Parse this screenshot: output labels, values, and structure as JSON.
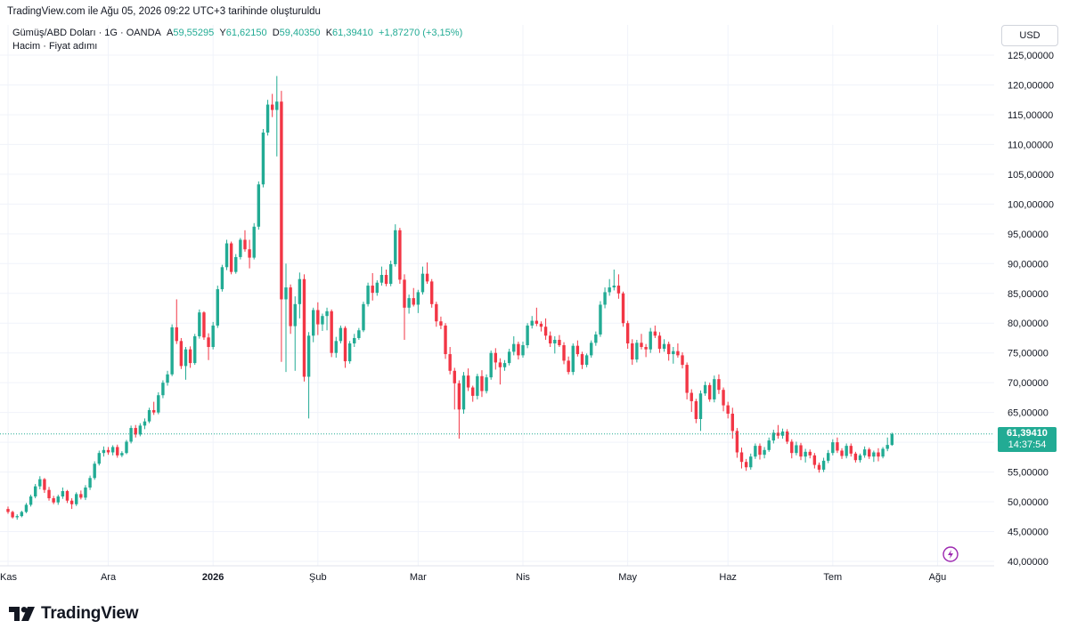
{
  "header": {
    "created_text": "TradingView.com ile Ağu 05, 2026 09:22 UTC+3 tarihinde oluşturuldu"
  },
  "legend": {
    "symbol": "Gümüş/ABD Doları · 1G · OANDA",
    "open_label": "A",
    "open": "59,55295",
    "high_label": "Y",
    "high": "61,62150",
    "low_label": "D",
    "low": "59,40350",
    "close_label": "K",
    "close": "61,39410",
    "change": "+1,87270 (+3,15%)",
    "indicators": "Hacim · Fiyat adımı"
  },
  "currency_button": "USD",
  "last_price": {
    "value": "61,39410",
    "countdown": "14:37:54"
  },
  "brand": {
    "name": "TradingView"
  },
  "colors": {
    "up": "#22ab94",
    "down": "#f23645",
    "grid": "#f0f3fa",
    "text": "#131722",
    "lightning": "#9c27b0"
  },
  "chart_data": {
    "type": "candlestick",
    "ylim": [
      40,
      125
    ],
    "y_ticks": [
      {
        "v": 125,
        "label": "125,00000"
      },
      {
        "v": 120,
        "label": "120,00000"
      },
      {
        "v": 115,
        "label": "115,00000"
      },
      {
        "v": 110,
        "label": "110,00000"
      },
      {
        "v": 105,
        "label": "105,00000"
      },
      {
        "v": 100,
        "label": "100,00000"
      },
      {
        "v": 95,
        "label": "95,00000"
      },
      {
        "v": 90,
        "label": "90,00000"
      },
      {
        "v": 85,
        "label": "85,00000"
      },
      {
        "v": 80,
        "label": "80,00000"
      },
      {
        "v": 75,
        "label": "75,00000"
      },
      {
        "v": 70,
        "label": "70,00000"
      },
      {
        "v": 65,
        "label": "65,00000"
      },
      {
        "v": 60,
        "label": "60,00000"
      },
      {
        "v": 55,
        "label": "55,00000"
      },
      {
        "v": 50,
        "label": "50,00000"
      },
      {
        "v": 45,
        "label": "45,00000"
      },
      {
        "v": 40,
        "label": "40,00000"
      }
    ],
    "x_ticks": [
      {
        "i": 0,
        "label": "Kas",
        "bold": false
      },
      {
        "i": 22,
        "label": "Ara",
        "bold": false
      },
      {
        "i": 45,
        "label": "2026",
        "bold": true
      },
      {
        "i": 68,
        "label": "Şub",
        "bold": false
      },
      {
        "i": 90,
        "label": "Mar",
        "bold": false
      },
      {
        "i": 113,
        "label": "Nis",
        "bold": false
      },
      {
        "i": 136,
        "label": "May",
        "bold": false
      },
      {
        "i": 158,
        "label": "Haz",
        "bold": false
      },
      {
        "i": 181,
        "label": "Tem",
        "bold": false
      },
      {
        "i": 204,
        "label": "Ağu",
        "bold": false
      }
    ],
    "last_close": 61.3941,
    "candles": [
      [
        48.8,
        49.2,
        48.0,
        48.3
      ],
      [
        48.3,
        48.5,
        47.2,
        47.4
      ],
      [
        47.4,
        47.9,
        47.0,
        47.6
      ],
      [
        47.6,
        48.5,
        47.4,
        48.3
      ],
      [
        48.3,
        49.8,
        48.1,
        49.5
      ],
      [
        49.5,
        51.2,
        49.2,
        50.9
      ],
      [
        50.9,
        53.0,
        50.6,
        52.6
      ],
      [
        52.6,
        54.3,
        52.1,
        53.8
      ],
      [
        53.8,
        54.0,
        51.5,
        52.0
      ],
      [
        52.0,
        52.5,
        50.2,
        50.6
      ],
      [
        50.6,
        51.0,
        49.6,
        49.9
      ],
      [
        49.9,
        51.2,
        49.5,
        50.9
      ],
      [
        50.9,
        52.4,
        50.5,
        51.8
      ],
      [
        51.8,
        52.0,
        49.8,
        50.2
      ],
      [
        50.2,
        50.6,
        48.8,
        49.6
      ],
      [
        49.6,
        51.6,
        49.3,
        51.3
      ],
      [
        51.3,
        51.9,
        50.4,
        50.7
      ],
      [
        50.7,
        52.8,
        50.3,
        52.4
      ],
      [
        52.4,
        54.4,
        52.0,
        54.0
      ],
      [
        54.0,
        56.8,
        53.7,
        56.4
      ],
      [
        56.4,
        58.6,
        56.1,
        58.2
      ],
      [
        58.2,
        59.3,
        57.6,
        58.7
      ],
      [
        58.7,
        59.2,
        57.9,
        58.3
      ],
      [
        58.3,
        59.5,
        57.8,
        59.2
      ],
      [
        59.2,
        59.6,
        57.4,
        57.8
      ],
      [
        57.8,
        58.5,
        57.5,
        58.2
      ],
      [
        58.2,
        60.4,
        58.0,
        60.1
      ],
      [
        60.1,
        62.8,
        59.8,
        62.4
      ],
      [
        62.4,
        62.9,
        60.8,
        61.3
      ],
      [
        61.3,
        63.2,
        61.0,
        62.8
      ],
      [
        62.8,
        64.0,
        62.2,
        63.5
      ],
      [
        63.5,
        65.8,
        63.2,
        65.4
      ],
      [
        65.4,
        66.8,
        64.6,
        65.0
      ],
      [
        65.0,
        68.4,
        64.7,
        67.9
      ],
      [
        67.9,
        70.4,
        67.4,
        70.0
      ],
      [
        70.0,
        72.0,
        69.5,
        71.4
      ],
      [
        71.4,
        79.8,
        71.1,
        79.3
      ],
      [
        79.3,
        84.0,
        76.5,
        77.0
      ],
      [
        77.0,
        77.5,
        72.3,
        72.8
      ],
      [
        72.8,
        76.0,
        70.5,
        75.6
      ],
      [
        75.6,
        76.1,
        72.5,
        73.3
      ],
      [
        73.3,
        78.2,
        73.0,
        77.8
      ],
      [
        77.8,
        82.3,
        77.4,
        81.8
      ],
      [
        81.8,
        82.0,
        77.2,
        77.6
      ],
      [
        77.6,
        78.3,
        73.8,
        76.0
      ],
      [
        76.0,
        80.2,
        75.6,
        79.6
      ],
      [
        79.6,
        86.3,
        79.2,
        85.7
      ],
      [
        85.7,
        89.8,
        85.3,
        89.4
      ],
      [
        89.4,
        94.0,
        88.9,
        93.4
      ],
      [
        93.4,
        93.7,
        88.2,
        88.6
      ],
      [
        88.6,
        91.6,
        88.3,
        91.1
      ],
      [
        91.1,
        94.3,
        90.7,
        94.0
      ],
      [
        94.0,
        95.6,
        92.0,
        92.4
      ],
      [
        92.4,
        94.0,
        89.2,
        91.0
      ],
      [
        91.0,
        96.8,
        90.7,
        96.2
      ],
      [
        96.2,
        103.8,
        95.7,
        103.3
      ],
      [
        103.3,
        112.6,
        102.8,
        112.0
      ],
      [
        112.0,
        117.5,
        111.5,
        116.7
      ],
      [
        116.7,
        118.5,
        114.6,
        115.8
      ],
      [
        115.8,
        121.5,
        108.0,
        117.2
      ],
      [
        117.2,
        119.0,
        73.5,
        84.0
      ],
      [
        84.0,
        90.0,
        71.8,
        86.0
      ],
      [
        86.0,
        86.5,
        78.2,
        79.5
      ],
      [
        79.5,
        84.5,
        72.0,
        83.2
      ],
      [
        83.2,
        88.5,
        80.8,
        87.4
      ],
      [
        87.4,
        88.2,
        70.2,
        71.0
      ],
      [
        71.0,
        78.5,
        64.0,
        77.9
      ],
      [
        77.9,
        82.6,
        76.8,
        82.2
      ],
      [
        82.2,
        83.5,
        78.0,
        79.8
      ],
      [
        79.8,
        81.6,
        78.7,
        81.2
      ],
      [
        81.2,
        82.6,
        78.8,
        82.0
      ],
      [
        82.0,
        82.3,
        74.3,
        75.0
      ],
      [
        75.0,
        77.7,
        74.2,
        77.0
      ],
      [
        77.0,
        79.6,
        76.6,
        79.2
      ],
      [
        79.2,
        79.5,
        72.5,
        73.6
      ],
      [
        73.6,
        77.0,
        73.2,
        76.6
      ],
      [
        76.6,
        78.2,
        76.0,
        77.5
      ],
      [
        77.5,
        79.2,
        77.2,
        78.8
      ],
      [
        78.8,
        83.6,
        78.5,
        83.2
      ],
      [
        83.2,
        86.8,
        82.8,
        86.3
      ],
      [
        86.3,
        88.4,
        83.8,
        85.1
      ],
      [
        85.1,
        87.2,
        84.6,
        86.8
      ],
      [
        86.8,
        89.5,
        86.3,
        88.1
      ],
      [
        88.1,
        89.0,
        86.2,
        86.6
      ],
      [
        86.6,
        90.5,
        86.2,
        89.9
      ],
      [
        89.9,
        96.6,
        89.5,
        95.6
      ],
      [
        95.6,
        96.0,
        86.6,
        87.3
      ],
      [
        87.3,
        88.2,
        77.2,
        82.6
      ],
      [
        82.6,
        84.8,
        81.6,
        84.2
      ],
      [
        84.2,
        85.9,
        82.8,
        83.1
      ],
      [
        83.1,
        85.6,
        81.7,
        85.2
      ],
      [
        85.2,
        89.5,
        84.8,
        88.3
      ],
      [
        88.3,
        90.2,
        86.6,
        87.0
      ],
      [
        87.0,
        87.4,
        82.6,
        83.2
      ],
      [
        83.2,
        83.6,
        79.4,
        80.3
      ],
      [
        80.3,
        81.1,
        79.0,
        79.6
      ],
      [
        79.6,
        80.0,
        74.0,
        74.8
      ],
      [
        74.8,
        76.0,
        71.4,
        72.0
      ],
      [
        72.0,
        72.5,
        65.5,
        69.9
      ],
      [
        69.9,
        70.4,
        60.6,
        65.5
      ],
      [
        65.5,
        71.8,
        64.8,
        71.2
      ],
      [
        71.2,
        72.4,
        68.6,
        69.2
      ],
      [
        69.2,
        69.5,
        66.8,
        67.8
      ],
      [
        67.8,
        71.5,
        67.2,
        71.1
      ],
      [
        71.1,
        72.1,
        67.6,
        68.6
      ],
      [
        68.6,
        71.4,
        68.2,
        70.9
      ],
      [
        70.9,
        75.4,
        70.5,
        75.0
      ],
      [
        75.0,
        75.8,
        72.2,
        73.4
      ],
      [
        73.4,
        74.1,
        69.7,
        72.6
      ],
      [
        72.6,
        73.8,
        72.0,
        73.3
      ],
      [
        73.3,
        75.7,
        72.9,
        75.2
      ],
      [
        75.2,
        77.8,
        74.6,
        76.5
      ],
      [
        76.5,
        76.9,
        73.9,
        74.6
      ],
      [
        74.6,
        76.9,
        74.2,
        76.3
      ],
      [
        76.3,
        80.0,
        75.8,
        79.6
      ],
      [
        79.6,
        81.2,
        79.1,
        80.4
      ],
      [
        80.4,
        82.6,
        79.5,
        79.9
      ],
      [
        79.9,
        80.3,
        78.6,
        79.4
      ],
      [
        79.4,
        80.8,
        77.2,
        77.9
      ],
      [
        77.9,
        78.6,
        76.0,
        76.6
      ],
      [
        76.6,
        77.8,
        74.9,
        77.2
      ],
      [
        77.2,
        78.0,
        76.0,
        76.3
      ],
      [
        76.3,
        76.8,
        73.1,
        73.7
      ],
      [
        73.7,
        74.4,
        71.4,
        71.8
      ],
      [
        71.8,
        76.6,
        71.3,
        76.2
      ],
      [
        76.2,
        77.1,
        74.4,
        74.8
      ],
      [
        74.8,
        75.2,
        72.3,
        73.0
      ],
      [
        73.0,
        74.9,
        72.6,
        74.6
      ],
      [
        74.6,
        77.1,
        74.2,
        76.7
      ],
      [
        76.7,
        78.6,
        76.2,
        78.1
      ],
      [
        78.1,
        83.7,
        77.7,
        83.1
      ],
      [
        83.1,
        86.0,
        82.5,
        85.2
      ],
      [
        85.2,
        87.4,
        84.6,
        86.0
      ],
      [
        86.0,
        89.0,
        85.5,
        86.3
      ],
      [
        86.3,
        88.2,
        84.1,
        85.0
      ],
      [
        85.0,
        85.3,
        79.4,
        80.0
      ],
      [
        80.0,
        80.4,
        75.7,
        76.6
      ],
      [
        76.6,
        77.3,
        73.0,
        73.9
      ],
      [
        73.9,
        77.2,
        73.4,
        76.7
      ],
      [
        76.7,
        78.2,
        75.6,
        76.0
      ],
      [
        76.0,
        76.5,
        74.3,
        75.6
      ],
      [
        75.6,
        79.2,
        75.0,
        78.6
      ],
      [
        78.6,
        79.6,
        77.5,
        77.9
      ],
      [
        77.9,
        78.5,
        75.0,
        75.7
      ],
      [
        75.7,
        77.3,
        75.2,
        76.5
      ],
      [
        76.5,
        76.9,
        73.7,
        74.8
      ],
      [
        74.8,
        76.0,
        73.2,
        75.3
      ],
      [
        75.3,
        76.6,
        74.2,
        74.6
      ],
      [
        74.6,
        75.1,
        72.4,
        73.0
      ],
      [
        73.0,
        73.4,
        67.2,
        68.3
      ],
      [
        68.3,
        68.9,
        65.1,
        66.9
      ],
      [
        66.9,
        67.3,
        63.2,
        63.9
      ],
      [
        63.9,
        68.7,
        61.9,
        68.2
      ],
      [
        68.2,
        70.2,
        67.8,
        69.6
      ],
      [
        69.6,
        70.0,
        66.8,
        67.2
      ],
      [
        67.2,
        71.2,
        66.7,
        70.6
      ],
      [
        70.6,
        71.4,
        68.1,
        68.8
      ],
      [
        68.8,
        69.2,
        65.2,
        66.2
      ],
      [
        66.2,
        66.8,
        64.0,
        64.8
      ],
      [
        64.8,
        65.8,
        60.6,
        61.9
      ],
      [
        61.9,
        62.4,
        57.4,
        58.3
      ],
      [
        58.3,
        59.1,
        55.6,
        56.7
      ],
      [
        56.7,
        57.2,
        55.2,
        55.8
      ],
      [
        55.8,
        58.1,
        55.4,
        57.6
      ],
      [
        57.6,
        59.8,
        57.2,
        59.4
      ],
      [
        59.4,
        59.8,
        57.1,
        57.9
      ],
      [
        57.9,
        59.2,
        57.3,
        58.7
      ],
      [
        58.7,
        60.8,
        58.4,
        60.3
      ],
      [
        60.3,
        62.1,
        59.8,
        61.6
      ],
      [
        61.6,
        62.9,
        60.6,
        61.1
      ],
      [
        61.1,
        62.3,
        60.6,
        61.8
      ],
      [
        61.8,
        62.2,
        59.7,
        60.1
      ],
      [
        60.1,
        60.5,
        57.3,
        58.2
      ],
      [
        58.2,
        60.1,
        57.8,
        59.5
      ],
      [
        59.5,
        59.9,
        57.0,
        57.6
      ],
      [
        57.6,
        58.9,
        56.6,
        58.4
      ],
      [
        58.4,
        58.8,
        57.3,
        57.8
      ],
      [
        57.8,
        58.2,
        55.6,
        56.2
      ],
      [
        56.2,
        56.6,
        54.9,
        55.4
      ],
      [
        55.4,
        57.4,
        55.0,
        56.9
      ],
      [
        56.9,
        58.7,
        56.5,
        58.2
      ],
      [
        58.2,
        60.5,
        57.8,
        60.0
      ],
      [
        60.0,
        60.8,
        58.2,
        58.6
      ],
      [
        58.6,
        59.0,
        57.2,
        57.7
      ],
      [
        57.7,
        59.8,
        57.3,
        59.4
      ],
      [
        59.4,
        59.8,
        57.6,
        58.1
      ],
      [
        58.1,
        58.4,
        56.6,
        57.0
      ],
      [
        57.0,
        58.1,
        56.6,
        57.8
      ],
      [
        57.8,
        59.3,
        57.4,
        58.8
      ],
      [
        58.8,
        59.1,
        57.2,
        57.6
      ],
      [
        57.6,
        58.6,
        56.7,
        58.3
      ],
      [
        58.3,
        59.0,
        56.8,
        57.6
      ],
      [
        57.6,
        59.2,
        57.3,
        58.9
      ],
      [
        58.9,
        60.8,
        58.5,
        59.55
      ],
      [
        59.55,
        61.62,
        59.4,
        61.39
      ]
    ]
  }
}
